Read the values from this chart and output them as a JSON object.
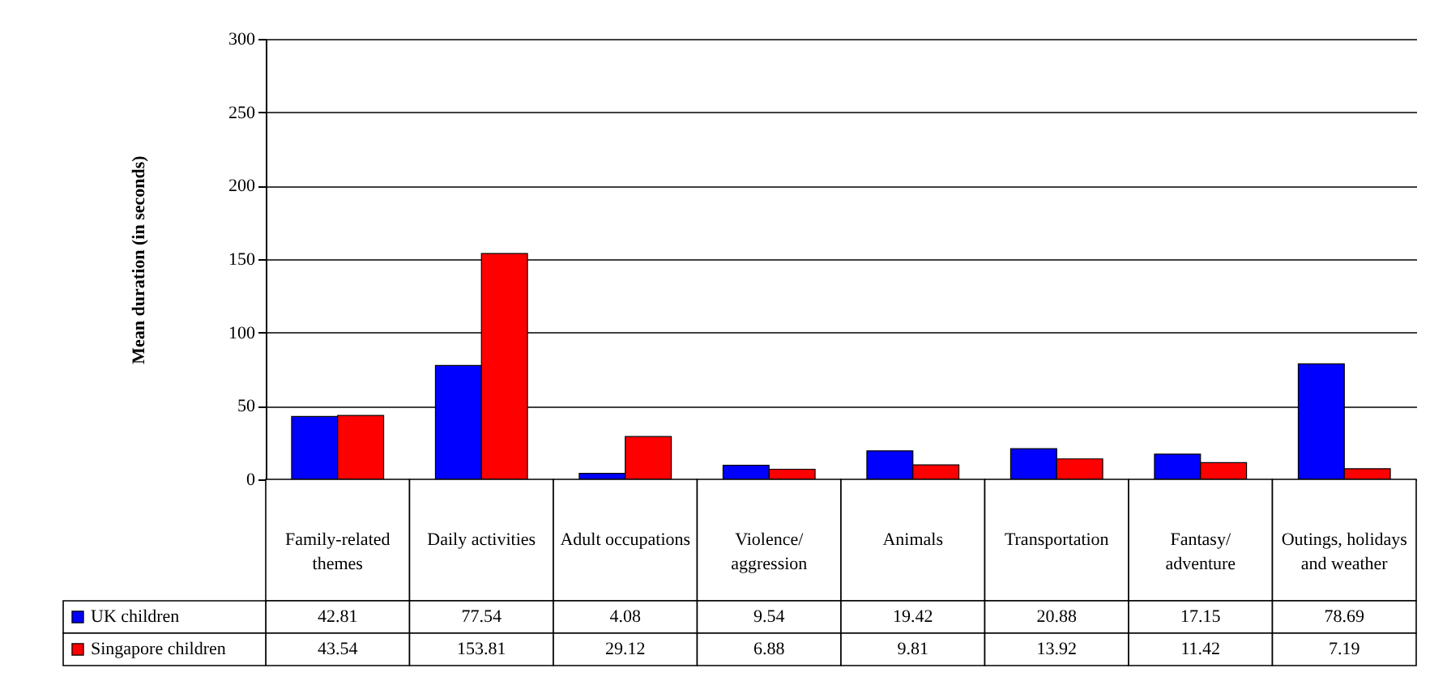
{
  "chart_data": {
    "type": "bar",
    "ylabel": "Mean duration (in seconds)",
    "categories": [
      "Family-related themes",
      "Daily activities",
      "Adult occupations",
      "Violence/ aggression",
      "Animals",
      "Transportation",
      "Fantasy/ adventure",
      "Outings, holidays and weather"
    ],
    "series": [
      {
        "name": "UK children",
        "color": "#0000ff",
        "values": [
          42.81,
          77.54,
          4.08,
          9.54,
          19.42,
          20.88,
          17.15,
          78.69
        ]
      },
      {
        "name": "Singapore children",
        "color": "#ff0000",
        "values": [
          43.54,
          153.81,
          29.12,
          6.88,
          9.81,
          13.92,
          11.42,
          7.19
        ]
      }
    ],
    "ylim": [
      0,
      300
    ],
    "yticks": [
      0,
      50,
      100,
      150,
      200,
      250,
      300
    ],
    "grid": "y",
    "legend": "bottom left",
    "data_labels": true
  }
}
